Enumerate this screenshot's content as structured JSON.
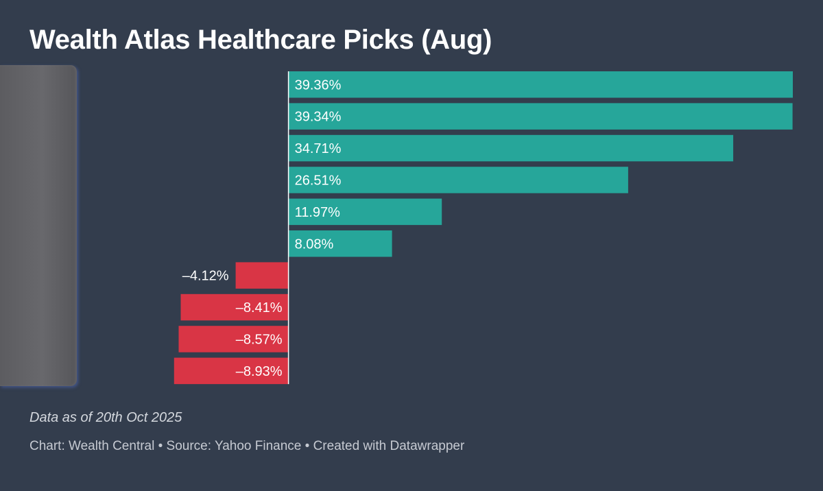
{
  "chart_data": {
    "type": "bar",
    "orientation": "horizontal",
    "title": "Wealth Atlas Healthcare Picks (Aug)",
    "values": [
      39.36,
      39.34,
      34.71,
      26.51,
      11.97,
      8.08,
      -4.12,
      -8.41,
      -8.57,
      -8.93
    ],
    "labels": [
      "39.36%",
      "39.34%",
      "34.71%",
      "26.51%",
      "11.97%",
      "8.08%",
      "–4.12%",
      "–8.41%",
      "–8.57%",
      "–8.93%"
    ],
    "xlim": [
      -15.5,
      39.36
    ],
    "grid": false,
    "legend": "none",
    "colors": {
      "positive": "#26a69a",
      "negative": "#d93545",
      "zero_line": "#ffffff",
      "label": "#ffffff"
    }
  },
  "notes": {
    "data_as_of": "Data as of 20th Oct 2025",
    "credit": "Chart: Wealth Central • Source: Yahoo Finance • Created with Datawrapper"
  }
}
